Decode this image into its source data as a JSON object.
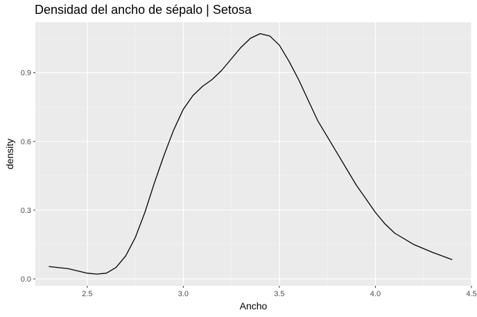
{
  "chart_data": {
    "type": "line",
    "title": "Densidad del ancho de sépalo | Setosa",
    "xlabel": "Ancho",
    "ylabel": "density",
    "xlim": [
      2.23,
      4.5
    ],
    "ylim": [
      -0.03,
      1.12
    ],
    "x_ticks": [
      2.5,
      3.0,
      3.5,
      4.0,
      4.5
    ],
    "x_tick_labels": [
      "2.5",
      "3.0",
      "3.5",
      "4.0",
      "4.5"
    ],
    "y_ticks": [
      0.0,
      0.3,
      0.6,
      0.9
    ],
    "y_tick_labels": [
      "0.0",
      "0.3",
      "0.6",
      "0.9"
    ],
    "grid": true,
    "background": "#ebebeb",
    "line_color": "#000000",
    "series": [
      {
        "x": [
          2.3,
          2.4,
          2.5,
          2.55,
          2.6,
          2.65,
          2.7,
          2.75,
          2.8,
          2.85,
          2.9,
          2.95,
          3.0,
          3.05,
          3.1,
          3.15,
          3.2,
          3.25,
          3.3,
          3.35,
          3.4,
          3.45,
          3.5,
          3.55,
          3.6,
          3.65,
          3.7,
          3.75,
          3.8,
          3.85,
          3.9,
          3.95,
          4.0,
          4.05,
          4.1,
          4.2,
          4.3,
          4.4
        ],
        "y": [
          0.054,
          0.045,
          0.025,
          0.021,
          0.025,
          0.05,
          0.1,
          0.18,
          0.29,
          0.42,
          0.54,
          0.65,
          0.74,
          0.8,
          0.84,
          0.87,
          0.91,
          0.96,
          1.01,
          1.05,
          1.07,
          1.06,
          1.02,
          0.95,
          0.87,
          0.78,
          0.69,
          0.62,
          0.55,
          0.48,
          0.41,
          0.35,
          0.29,
          0.24,
          0.2,
          0.15,
          0.115,
          0.084
        ]
      }
    ]
  }
}
